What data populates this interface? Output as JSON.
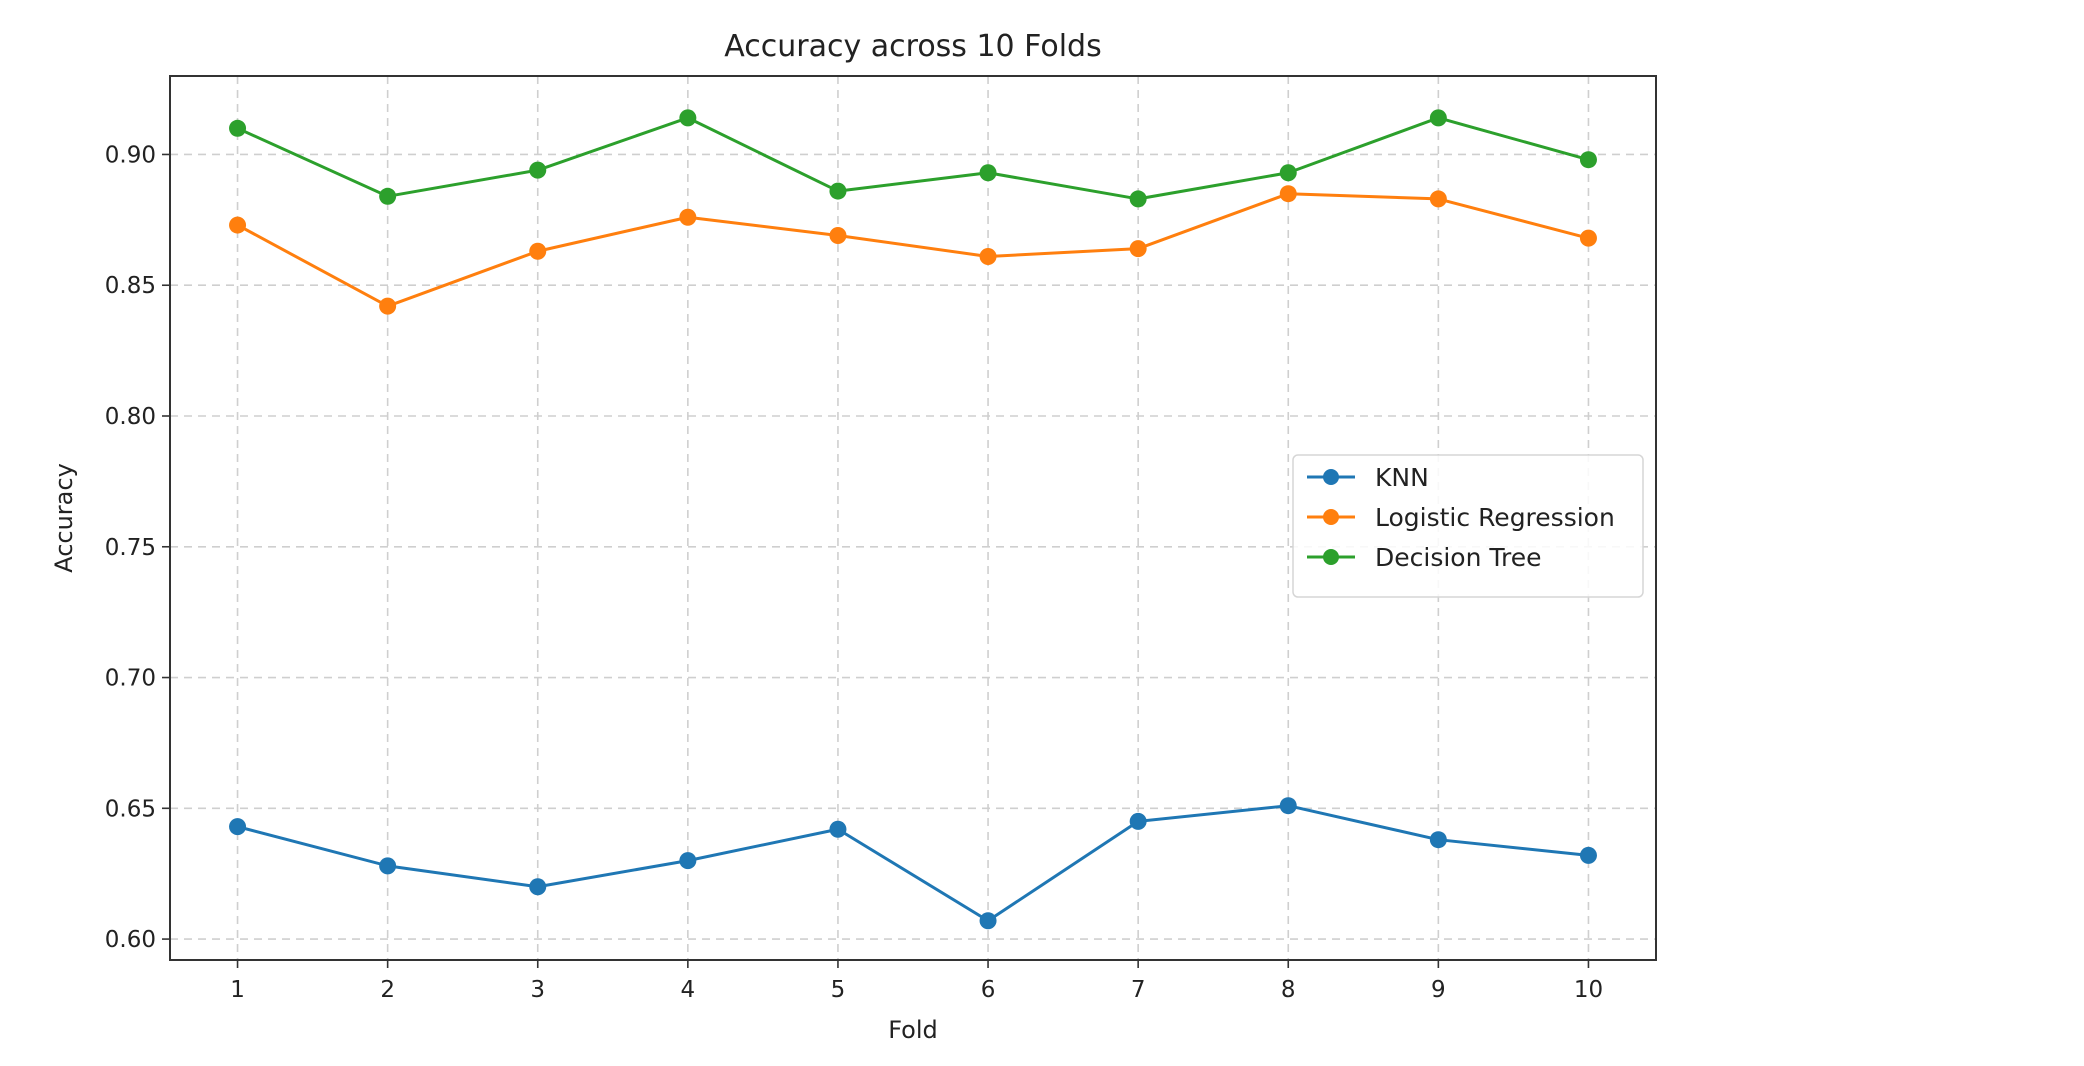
{
  "chart_data": {
    "type": "line",
    "title": "Accuracy across 10 Folds",
    "xlabel": "Fold",
    "ylabel": "Accuracy",
    "x": [
      1,
      2,
      3,
      4,
      5,
      6,
      7,
      8,
      9,
      10
    ],
    "x_tick_labels": [
      "1",
      "2",
      "3",
      "4",
      "5",
      "6",
      "7",
      "8",
      "9",
      "10"
    ],
    "y_ticks": [
      0.6,
      0.65,
      0.7,
      0.75,
      0.8,
      0.85,
      0.9
    ],
    "y_tick_labels": [
      "0.60",
      "0.65",
      "0.70",
      "0.75",
      "0.80",
      "0.85",
      "0.90"
    ],
    "xlim": [
      0.55,
      10.45
    ],
    "ylim": [
      0.592,
      0.93
    ],
    "grid": true,
    "marker": "circle",
    "legend_position": "center-right",
    "series": [
      {
        "name": "KNN",
        "color": "#1f77b4",
        "values": [
          0.643,
          0.628,
          0.62,
          0.63,
          0.642,
          0.607,
          0.645,
          0.651,
          0.638,
          0.632
        ]
      },
      {
        "name": "Logistic Regression",
        "color": "#ff7f0e",
        "values": [
          0.873,
          0.842,
          0.863,
          0.876,
          0.869,
          0.861,
          0.864,
          0.885,
          0.883,
          0.868
        ]
      },
      {
        "name": "Decision Tree",
        "color": "#2ca02c",
        "values": [
          0.91,
          0.884,
          0.894,
          0.914,
          0.886,
          0.893,
          0.883,
          0.893,
          0.914,
          0.898
        ]
      }
    ]
  }
}
